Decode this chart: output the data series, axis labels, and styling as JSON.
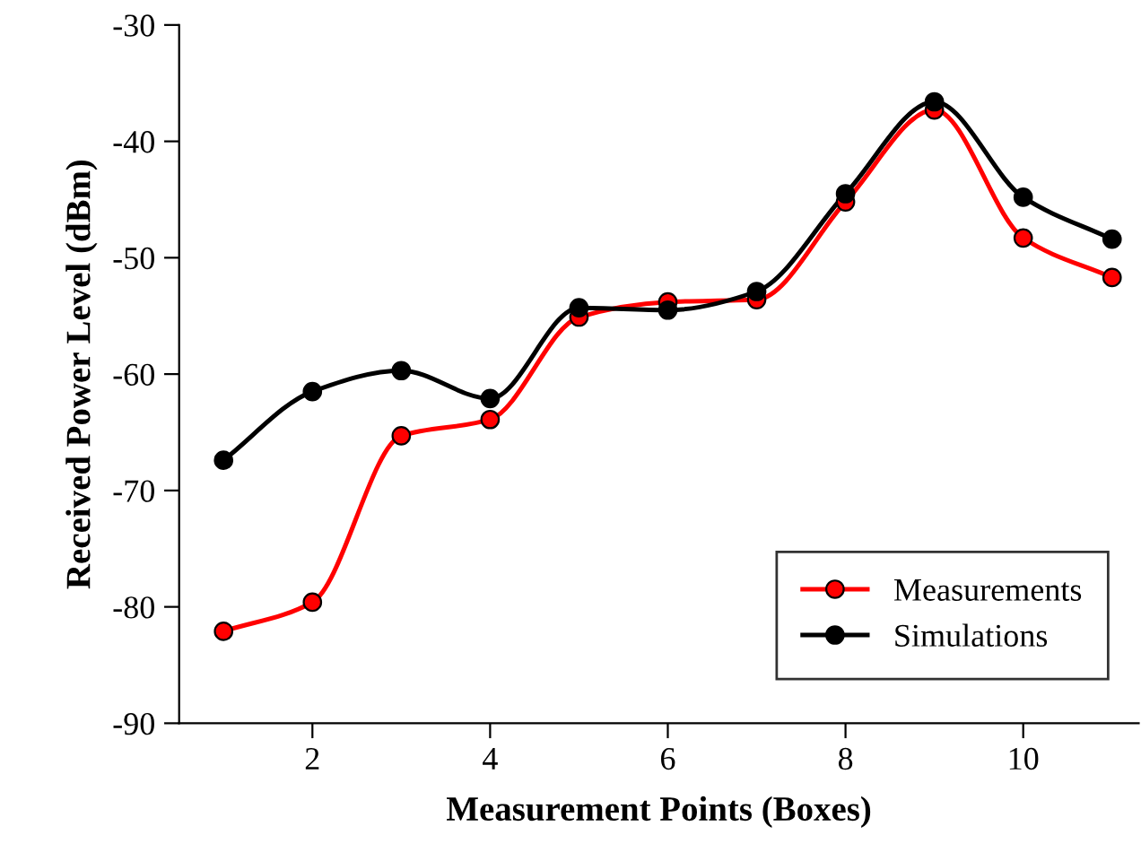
{
  "chart_data": {
    "type": "line",
    "xlabel": "Measurement Points (Boxes)",
    "ylabel": "Received Power Level (dBm)",
    "x": [
      1,
      2,
      3,
      4,
      5,
      6,
      7,
      8,
      9,
      10,
      11
    ],
    "series": [
      {
        "name": "Measurements",
        "color": "#ff0000",
        "values": [
          -82.1,
          -79.6,
          -65.3,
          -63.9,
          -55.1,
          -53.8,
          -53.6,
          -45.2,
          -37.3,
          -48.3,
          -51.7
        ]
      },
      {
        "name": "Simulations",
        "color": "#000000",
        "values": [
          -67.4,
          -61.5,
          -59.7,
          -62.1,
          -54.3,
          -54.5,
          -52.9,
          -44.5,
          -36.6,
          -44.8,
          -48.4
        ]
      }
    ],
    "xlim": [
      0.5,
      11.3
    ],
    "xticks": [
      2,
      4,
      6,
      8,
      10
    ],
    "ylim": [
      -90,
      -30
    ],
    "yticks": [
      -90,
      -80,
      -70,
      -60,
      -50,
      -40,
      -30
    ],
    "grid": false,
    "legend": "bottom right",
    "marker": "circle",
    "line_style": "solid"
  }
}
